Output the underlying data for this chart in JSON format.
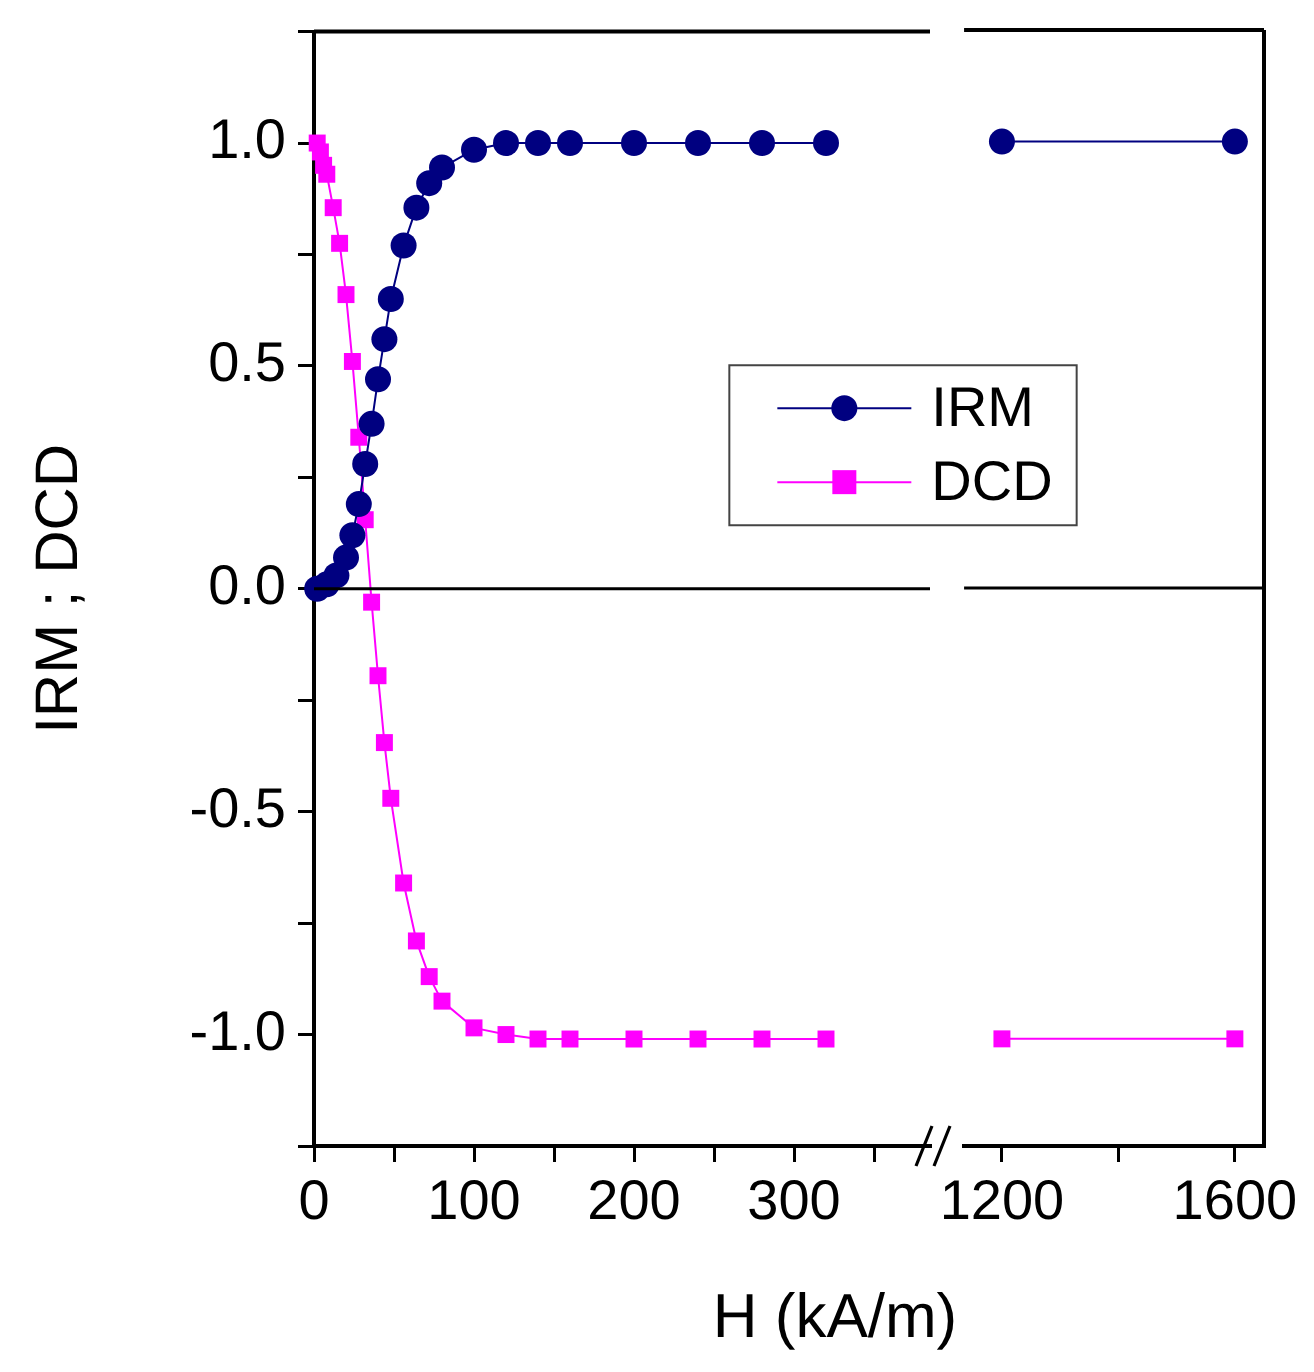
{
  "chart_data": [
    {
      "type": "line",
      "xlabel": "H (kA/m)",
      "ylabel": "IRM ; DCD",
      "xlim": [
        0,
        385
      ],
      "xticks": [
        0,
        {
          "value": 50,
          "label": null
        },
        100,
        {
          "value": 150,
          "label": null
        },
        200,
        {
          "value": 250,
          "label": null
        },
        300,
        {
          "value": 350,
          "label": null
        }
      ],
      "ylim": [
        -1.25,
        1.25
      ],
      "yticks": [
        {
          "value": -1.25,
          "label": null
        },
        {
          "value": -1,
          "label": "-1.0"
        },
        {
          "value": -0.75,
          "label": null
        },
        {
          "value": -0.5,
          "label": "-0.5"
        },
        {
          "value": -0.25,
          "label": null
        },
        {
          "value": 0,
          "label": "0.0"
        },
        {
          "value": 0.25,
          "label": null
        },
        {
          "value": 0.5,
          "label": "0.5"
        },
        {
          "value": 0.75,
          "label": null
        },
        {
          "value": 1,
          "label": "1.0"
        },
        {
          "value": 1.25,
          "label": null
        }
      ],
      "grid": false,
      "legend": "right",
      "ref_lines": [
        {
          "axis": "y",
          "value": 0
        }
      ],
      "series": [
        {
          "name": "IRM",
          "color": "#000080",
          "marker": "circle",
          "x": [
            2,
            8,
            14,
            20,
            24,
            28,
            32,
            36,
            40,
            44,
            48,
            56,
            64,
            72,
            80,
            100,
            120,
            140,
            160,
            200,
            240,
            280,
            320
          ],
          "values": [
            0,
            0.01,
            0.03,
            0.07,
            0.12,
            0.19,
            0.28,
            0.37,
            0.47,
            0.56,
            0.65,
            0.77,
            0.855,
            0.91,
            0.945,
            0.985,
            1,
            1,
            1,
            1,
            1,
            1,
            1
          ]
        },
        {
          "name": "DCD",
          "color": "#ff00ff",
          "marker": "square",
          "x": [
            2,
            4,
            6,
            8,
            12,
            16,
            20,
            24,
            28,
            32,
            36,
            40,
            44,
            48,
            56,
            64,
            72,
            80,
            100,
            120,
            140,
            160,
            200,
            240,
            280,
            320
          ],
          "values": [
            1,
            0.98,
            0.95,
            0.93,
            0.855,
            0.775,
            0.66,
            0.51,
            0.34,
            0.155,
            -0.03,
            -0.195,
            -0.345,
            -0.47,
            -0.66,
            -0.79,
            -0.87,
            -0.925,
            -0.985,
            -1,
            -1.01,
            -1.01,
            -1.01,
            -1.01,
            -1.01,
            -1.01
          ]
        }
      ]
    },
    {
      "type": "line",
      "xlim": [
        1135,
        1650
      ],
      "xticks": [
        1200,
        {
          "value": 1400,
          "label": null
        },
        1600
      ],
      "ylim": [
        -1.25,
        1.25
      ],
      "tick_labels": "x",
      "grid": false,
      "ref_lines": [
        {
          "axis": "y",
          "value": 0
        }
      ],
      "series": [
        {
          "color": "#000080",
          "marker": "circle",
          "x": [
            1200,
            1600
          ],
          "values": [
            1,
            1
          ]
        },
        {
          "color": "#ff00ff",
          "marker": "square",
          "x": [
            1200,
            1600
          ],
          "values": [
            -1.01,
            -1.01
          ]
        }
      ]
    }
  ]
}
